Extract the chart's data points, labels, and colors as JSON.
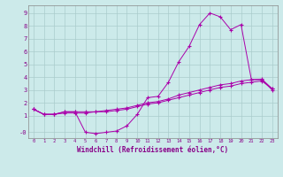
{
  "background_color": "#cceaea",
  "grid_color": "#aacccc",
  "line_color": "#aa00aa",
  "marker": "+",
  "xlabel": "Windchill (Refroidissement éolien,°C)",
  "ylabel_ticks": [
    "-0",
    "1",
    "2",
    "3",
    "4",
    "5",
    "6",
    "7",
    "8",
    "9"
  ],
  "ytick_vals": [
    -0.3,
    1,
    2,
    3,
    4,
    5,
    6,
    7,
    8,
    9
  ],
  "xlim": [
    -0.5,
    23.5
  ],
  "ylim": [
    -0.75,
    9.6
  ],
  "xtick_labels": [
    "0",
    "1",
    "2",
    "3",
    "4",
    "5",
    "6",
    "7",
    "8",
    "9",
    "10",
    "11",
    "12",
    "13",
    "14",
    "15",
    "16",
    "17",
    "18",
    "19",
    "20",
    "21",
    "22",
    "23"
  ],
  "series": [
    [
      1.5,
      1.1,
      1.1,
      1.3,
      1.3,
      -0.3,
      -0.4,
      -0.3,
      -0.2,
      0.2,
      1.1,
      2.4,
      2.5,
      3.6,
      5.2,
      6.4,
      8.1,
      9.0,
      8.7,
      7.7,
      8.1,
      3.8,
      3.8,
      3.0
    ],
    [
      1.5,
      1.1,
      1.1,
      1.3,
      1.3,
      1.3,
      1.3,
      1.3,
      1.4,
      1.5,
      1.7,
      1.9,
      2.0,
      2.2,
      2.4,
      2.6,
      2.8,
      3.0,
      3.2,
      3.3,
      3.5,
      3.6,
      3.7,
      3.1
    ],
    [
      1.5,
      1.1,
      1.1,
      1.2,
      1.2,
      1.2,
      1.3,
      1.4,
      1.5,
      1.6,
      1.8,
      2.0,
      2.1,
      2.3,
      2.6,
      2.8,
      3.0,
      3.2,
      3.4,
      3.5,
      3.7,
      3.8,
      3.85,
      3.1
    ]
  ],
  "label_color": "#880088",
  "spine_color": "#888888"
}
